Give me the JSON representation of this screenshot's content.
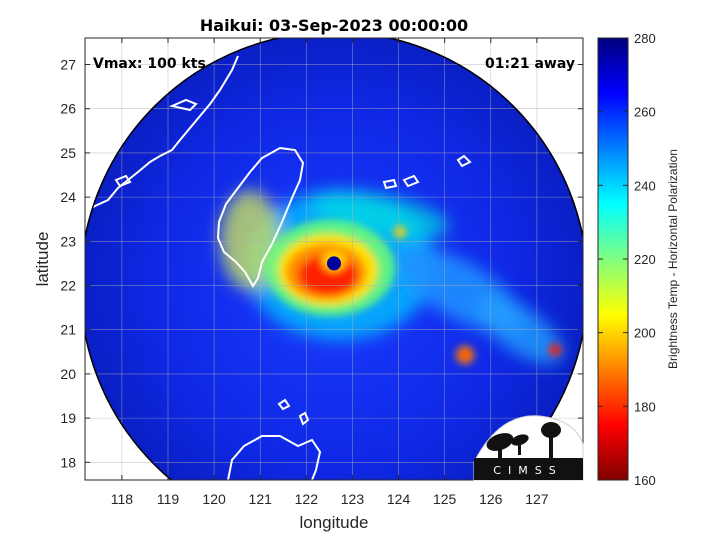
{
  "title": "Haikui: 03-Sep-2023 00:00:00",
  "annotations": {
    "vmax": "Vmax: 100 kts",
    "time_away": "01:21 away"
  },
  "logo_text": "CIMSS",
  "chart_data": {
    "type": "heatmap",
    "xlabel": "longitude",
    "ylabel": "latitude",
    "xlim": [
      117.2,
      128.0
    ],
    "ylim": [
      17.6,
      27.6
    ],
    "x_ticks": [
      118,
      119,
      120,
      121,
      122,
      123,
      124,
      125,
      126,
      127
    ],
    "y_ticks": [
      18,
      19,
      20,
      21,
      22,
      23,
      24,
      25,
      26,
      27
    ],
    "grid": true,
    "storm_center": {
      "lon": 122.6,
      "lat": 22.5
    },
    "swath_center": {
      "lon": 122.6,
      "lat": 22.0
    },
    "swath_radius_deg_lon": 5.5,
    "colorbar": {
      "label": "Brightness Temp - Horizontal Polarization",
      "range": [
        160,
        280
      ],
      "ticks": [
        160,
        180,
        200,
        220,
        240,
        260,
        280
      ],
      "colors": [
        "#7f0000",
        "#ff0000",
        "#ff8000",
        "#ffff00",
        "#80ff80",
        "#00ffff",
        "#0080ff",
        "#0000ff",
        "#00007f"
      ]
    }
  }
}
